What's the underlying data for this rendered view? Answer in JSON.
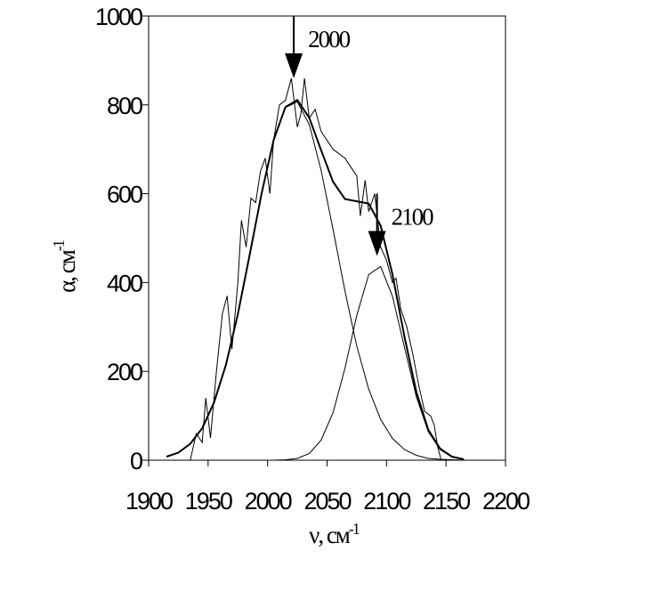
{
  "chart_data": {
    "type": "line",
    "xlabel": "ν, см",
    "xlabel_sup": "-1",
    "ylabel": "α, см",
    "ylabel_sup": "-1",
    "xlim": [
      1900,
      2200
    ],
    "xticks": [
      1900,
      1950,
      2000,
      2050,
      2100,
      2150,
      2200
    ],
    "ylim": [
      0,
      1000
    ],
    "yticks": [
      0,
      200,
      400,
      600,
      800,
      1000
    ],
    "grid": false,
    "x": [
      1915,
      1925,
      1935,
      1945,
      1955,
      1965,
      1975,
      1985,
      1995,
      2005,
      2015,
      2025,
      2035,
      2045,
      2055,
      2065,
      2075,
      2085,
      2095,
      2105,
      2115,
      2125,
      2135,
      2145,
      2155,
      2165
    ],
    "series": [
      {
        "color": "#000000",
        "x": [
          1935,
          1940,
          1945,
          1948,
          1952,
          1957,
          1962,
          1966,
          1970,
          1975,
          1978,
          1982,
          1986,
          1990,
          1994,
          1998,
          2002,
          2005,
          2010,
          2015,
          2020,
          2025,
          2028,
          2031,
          2035,
          2040,
          2045,
          2050,
          2055,
          2060,
          2065,
          2070,
          2075,
          2078,
          2082,
          2085,
          2090,
          2095,
          2100,
          2105,
          2108,
          2112,
          2117,
          2122,
          2127,
          2132,
          2137,
          2140,
          2143,
          2146
        ],
        "values": [
          0,
          60,
          40,
          140,
          50,
          200,
          330,
          370,
          250,
          400,
          540,
          480,
          590,
          580,
          650,
          680,
          600,
          720,
          800,
          810,
          860,
          750,
          780,
          860,
          770,
          790,
          740,
          720,
          700,
          690,
          680,
          660,
          640,
          550,
          630,
          560,
          600,
          480,
          450,
          400,
          410,
          340,
          300,
          240,
          170,
          110,
          100,
          80,
          30,
          0
        ]
      },
      {
        "color": "#000000",
        "values": [
          8,
          17,
          37,
          72,
          130,
          215,
          329,
          463,
          601,
          720,
          795,
          811,
          771,
          698,
          627,
          588,
          583,
          578,
          528,
          418,
          279,
          154,
          69,
          26,
          8,
          2
        ]
      },
      {
        "color": "#000000",
        "values": [
          8,
          17,
          37,
          72,
          130,
          215,
          329,
          463,
          601,
          720,
          794,
          807,
          756,
          653,
          520,
          381,
          257,
          160,
          92,
          49,
          24,
          11,
          4,
          2,
          1,
          0
        ]
      },
      {
        "color": "#000000",
        "values": [
          0,
          0,
          0,
          0,
          0,
          0,
          0,
          0,
          0,
          0,
          1,
          4,
          15,
          45,
          107,
          207,
          326,
          418,
          436,
          369,
          255,
          143,
          65,
          24,
          7,
          2
        ]
      }
    ],
    "annotations": [
      {
        "text": "2000",
        "x": 2022,
        "y": 860
      },
      {
        "text": "2100",
        "x": 2092,
        "y": 460
      }
    ]
  }
}
